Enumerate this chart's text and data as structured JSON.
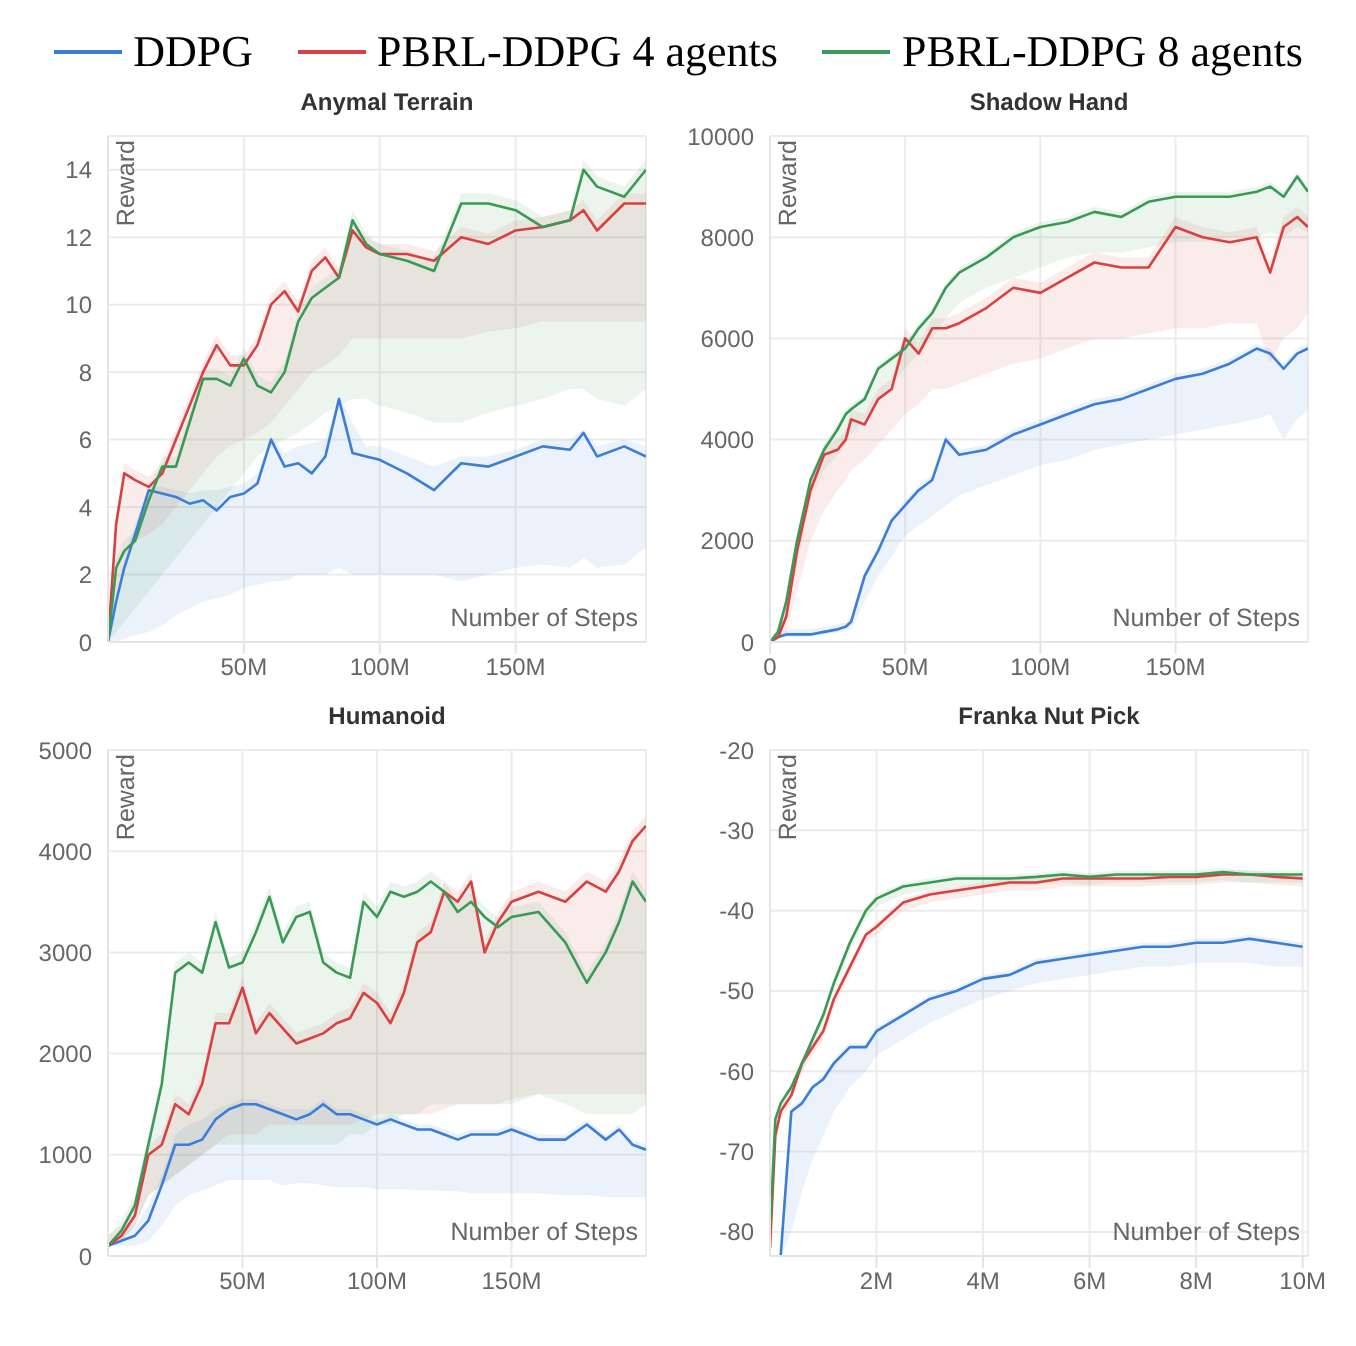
{
  "chart_data": [
    {
      "type": "line",
      "title": "Anymal Terrain",
      "xlabel": "Number of Steps",
      "ylabel": "Reward",
      "legend": "top",
      "grid": true,
      "xlim": [
        0,
        198
      ],
      "ylim": [
        0,
        15
      ],
      "xticks": [
        {
          "value": 50,
          "label": "50M"
        },
        {
          "value": 100,
          "label": "100M"
        },
        {
          "value": 150,
          "label": "150M"
        }
      ],
      "yticks": [
        0,
        2,
        4,
        6,
        8,
        10,
        12,
        14
      ],
      "x": [
        0,
        3,
        6,
        10,
        15,
        20,
        25,
        30,
        35,
        40,
        45,
        50,
        55,
        60,
        65,
        70,
        75,
        80,
        85,
        90,
        95,
        100,
        110,
        120,
        130,
        140,
        150,
        160,
        170,
        175,
        180,
        190,
        198
      ],
      "series": [
        {
          "name": "DDPG",
          "color": "#3b7dd8",
          "values": [
            0,
            1.2,
            2.2,
            3.2,
            4.5,
            4.4,
            4.3,
            4.1,
            4.2,
            3.9,
            4.3,
            4.4,
            4.7,
            6.0,
            5.2,
            5.3,
            5.0,
            5.5,
            7.2,
            5.6,
            5.5,
            5.4,
            5.0,
            4.5,
            5.3,
            5.2,
            5.5,
            5.8,
            5.7,
            6.2,
            5.5,
            5.8,
            5.5
          ],
          "lower": [
            0,
            0,
            0.1,
            0.2,
            0.3,
            0.5,
            0.8,
            1.0,
            1.2,
            1.3,
            1.4,
            1.6,
            1.7,
            1.8,
            1.8,
            2.0,
            2.0,
            2.0,
            2.2,
            2.0,
            2.0,
            2.0,
            2.0,
            2.0,
            1.8,
            2.0,
            2.2,
            2.3,
            2.2,
            2.5,
            2.2,
            2.3,
            2.8
          ],
          "upper": [
            0,
            1.5,
            2.5,
            3.5,
            4.6,
            4.6,
            4.5,
            4.4,
            4.5,
            4.5,
            4.6,
            4.7,
            5.0,
            6.1,
            5.6,
            5.8,
            5.9,
            6.0,
            7.3,
            6.5,
            5.8,
            5.8,
            5.5,
            5.2,
            5.5,
            5.5,
            5.7,
            6.0,
            6.0,
            6.3,
            5.8,
            6.0,
            5.8
          ]
        },
        {
          "name": "PBRL-DDPG 4 agents",
          "color": "#d94040",
          "values": [
            0,
            3.5,
            5.0,
            4.8,
            4.6,
            5.0,
            6.0,
            7.0,
            8.0,
            8.8,
            8.2,
            8.2,
            8.8,
            10.0,
            10.4,
            9.8,
            11.0,
            11.4,
            10.8,
            12.2,
            11.7,
            11.5,
            11.5,
            11.3,
            12.0,
            11.8,
            12.2,
            12.3,
            12.5,
            12.8,
            12.2,
            13.0,
            13.0
          ],
          "lower": [
            0,
            1.5,
            2.5,
            3.0,
            3.2,
            3.5,
            4.0,
            4.5,
            5.0,
            5.5,
            5.8,
            6.0,
            6.2,
            6.5,
            7.0,
            7.5,
            8.0,
            8.2,
            8.5,
            9.0,
            9.0,
            9.0,
            9.0,
            9.0,
            9.0,
            9.2,
            9.3,
            9.5,
            9.5,
            9.5,
            9.5,
            9.5,
            9.5
          ],
          "upper": [
            0,
            3.8,
            5.3,
            5.1,
            4.9,
            5.3,
            6.3,
            7.3,
            8.3,
            9.1,
            8.5,
            8.5,
            9.1,
            10.3,
            10.7,
            10.1,
            11.3,
            11.7,
            11.1,
            12.5,
            12.0,
            11.8,
            11.8,
            11.6,
            12.3,
            12.1,
            12.5,
            12.6,
            12.8,
            13.1,
            12.5,
            13.3,
            13.3
          ]
        },
        {
          "name": "PBRL-DDPG 8 agents",
          "color": "#3a9a55",
          "values": [
            0,
            2.2,
            2.7,
            3.0,
            4.2,
            5.2,
            5.2,
            6.5,
            7.8,
            7.8,
            7.6,
            8.4,
            7.6,
            7.4,
            8.0,
            9.5,
            10.2,
            10.5,
            10.8,
            12.5,
            11.8,
            11.5,
            11.3,
            11.0,
            13.0,
            13.0,
            12.8,
            12.3,
            12.5,
            14.0,
            13.5,
            13.2,
            14.0
          ],
          "lower": [
            0,
            0.3,
            0.6,
            1.0,
            1.5,
            2.0,
            2.5,
            3.0,
            3.5,
            4.0,
            4.5,
            5.0,
            5.5,
            5.8,
            6.0,
            6.2,
            6.5,
            6.8,
            7.0,
            7.2,
            7.2,
            7.0,
            6.8,
            6.5,
            6.5,
            6.8,
            7.0,
            7.2,
            7.5,
            7.5,
            7.2,
            7.0,
            7.5
          ],
          "upper": [
            0,
            2.5,
            3.0,
            3.3,
            4.5,
            5.5,
            5.5,
            6.8,
            8.1,
            8.1,
            7.9,
            8.7,
            7.9,
            7.7,
            8.3,
            9.8,
            10.5,
            10.8,
            11.1,
            12.8,
            12.1,
            11.8,
            11.6,
            11.3,
            13.3,
            13.3,
            13.1,
            12.6,
            12.8,
            14.3,
            13.8,
            13.5,
            14.3
          ]
        }
      ]
    },
    {
      "type": "line",
      "title": "Shadow Hand",
      "xlabel": "Number of Steps",
      "ylabel": "Reward",
      "grid": true,
      "xlim": [
        0,
        199
      ],
      "ylim": [
        0,
        10000
      ],
      "xticks": [
        0,
        {
          "value": 50,
          "label": "50M"
        },
        {
          "value": 100,
          "label": "100M"
        },
        {
          "value": 150,
          "label": "150M"
        }
      ],
      "yticks": [
        0,
        2000,
        4000,
        6000,
        8000,
        10000
      ],
      "x": [
        0,
        3,
        6,
        10,
        15,
        20,
        25,
        28,
        30,
        35,
        40,
        45,
        50,
        55,
        60,
        65,
        70,
        80,
        90,
        100,
        110,
        120,
        130,
        140,
        150,
        160,
        170,
        180,
        185,
        190,
        195,
        199
      ],
      "series": [
        {
          "color": "#3b7dd8",
          "values": [
            0,
            100,
            150,
            150,
            150,
            200,
            250,
            300,
            400,
            1300,
            1800,
            2400,
            2700,
            3000,
            3200,
            4000,
            3700,
            3800,
            4100,
            4300,
            4500,
            4700,
            4800,
            5000,
            5200,
            5300,
            5500,
            5800,
            5700,
            5400,
            5700,
            5800
          ],
          "lower": [
            0,
            50,
            100,
            100,
            100,
            150,
            200,
            200,
            250,
            800,
            1300,
            1700,
            2100,
            2300,
            2500,
            2700,
            2900,
            3100,
            3300,
            3500,
            3600,
            3800,
            3900,
            4000,
            4100,
            4200,
            4300,
            4400,
            4500,
            4000,
            4400,
            4600
          ],
          "upper": [
            0,
            200,
            250,
            250,
            250,
            300,
            350,
            400,
            500,
            1400,
            1900,
            2500,
            2800,
            3100,
            3300,
            4100,
            3800,
            3900,
            4200,
            4400,
            4600,
            4800,
            4900,
            5100,
            5300,
            5400,
            5600,
            5900,
            5800,
            5500,
            5800,
            5900
          ]
        },
        {
          "color": "#d94040",
          "values": [
            0,
            100,
            500,
            1800,
            3000,
            3700,
            3800,
            4000,
            4400,
            4300,
            4800,
            5000,
            6000,
            5700,
            6200,
            6200,
            6300,
            6600,
            7000,
            6900,
            7200,
            7500,
            7400,
            7400,
            8200,
            8000,
            7900,
            8000,
            7300,
            8200,
            8400,
            8200
          ],
          "lower": [
            0,
            50,
            200,
            1000,
            2000,
            2600,
            3000,
            3200,
            3400,
            3600,
            3900,
            4200,
            4500,
            4700,
            5000,
            5000,
            5100,
            5300,
            5500,
            5600,
            5800,
            6000,
            6000,
            6100,
            6200,
            6200,
            6300,
            6300,
            5500,
            6000,
            6200,
            6500
          ],
          "upper": [
            0,
            300,
            700,
            2000,
            3200,
            3900,
            4000,
            4200,
            4600,
            4500,
            5000,
            5200,
            6200,
            5900,
            6400,
            6400,
            6500,
            6800,
            7200,
            7100,
            7400,
            7700,
            7600,
            7600,
            8400,
            8200,
            8100,
            8200,
            7500,
            8400,
            8600,
            8400
          ]
        },
        {
          "color": "#3a9a55",
          "values": [
            0,
            200,
            800,
            2000,
            3200,
            3800,
            4200,
            4500,
            4600,
            4800,
            5400,
            5600,
            5800,
            6200,
            6500,
            7000,
            7300,
            7600,
            8000,
            8200,
            8300,
            8500,
            8400,
            8700,
            8800,
            8800,
            8800,
            8900,
            9000,
            8800,
            9200,
            8900
          ],
          "lower": [
            0,
            100,
            500,
            1500,
            2800,
            3400,
            3700,
            3900,
            4100,
            4400,
            4800,
            5100,
            5400,
            5700,
            6000,
            6400,
            6700,
            7000,
            7200,
            7400,
            7600,
            7700,
            7700,
            7800,
            7900,
            7900,
            8000,
            8000,
            8100,
            8000,
            8200,
            8100
          ],
          "upper": [
            0,
            300,
            900,
            2100,
            3300,
            3900,
            4300,
            4600,
            4700,
            4900,
            5500,
            5700,
            5900,
            6300,
            6600,
            7100,
            7400,
            7700,
            8100,
            8300,
            8400,
            8600,
            8500,
            8800,
            8900,
            8900,
            8900,
            9000,
            9100,
            8900,
            9300,
            9000
          ]
        }
      ]
    },
    {
      "type": "line",
      "title": "Humanoid",
      "xlabel": "Number of Steps",
      "ylabel": "Reward",
      "grid": true,
      "xlim": [
        0,
        200
      ],
      "ylim": [
        0,
        5000
      ],
      "xticks": [
        {
          "value": 50,
          "label": "50M"
        },
        {
          "value": 100,
          "label": "100M"
        },
        {
          "value": 150,
          "label": "150M"
        }
      ],
      "yticks": [
        0,
        1000,
        2000,
        3000,
        4000,
        5000
      ],
      "x": [
        0,
        5,
        10,
        15,
        20,
        25,
        30,
        35,
        40,
        45,
        50,
        55,
        60,
        65,
        70,
        75,
        80,
        85,
        90,
        95,
        100,
        105,
        110,
        115,
        120,
        125,
        130,
        135,
        140,
        145,
        150,
        160,
        170,
        178,
        185,
        190,
        195,
        200
      ],
      "series": [
        {
          "color": "#3b7dd8",
          "values": [
            100,
            150,
            200,
            350,
            700,
            1100,
            1100,
            1150,
            1350,
            1450,
            1500,
            1500,
            1450,
            1400,
            1350,
            1400,
            1500,
            1400,
            1400,
            1350,
            1300,
            1350,
            1300,
            1250,
            1250,
            1200,
            1150,
            1200,
            1200,
            1200,
            1250,
            1150,
            1150,
            1300,
            1150,
            1250,
            1100,
            1050
          ],
          "lower": [
            100,
            100,
            100,
            150,
            300,
            500,
            600,
            650,
            700,
            750,
            750,
            750,
            750,
            700,
            720,
            720,
            700,
            680,
            680,
            680,
            660,
            660,
            660,
            650,
            650,
            640,
            640,
            620,
            620,
            620,
            620,
            620,
            600,
            600,
            580,
            580,
            580,
            580
          ],
          "upper": [
            100,
            200,
            300,
            500,
            800,
            1200,
            1300,
            1350,
            1450,
            1500,
            1550,
            1550,
            1500,
            1450,
            1450,
            1450,
            1550,
            1450,
            1450,
            1400,
            1350,
            1400,
            1350,
            1300,
            1300,
            1250,
            1200,
            1250,
            1250,
            1250,
            1300,
            1200,
            1200,
            1350,
            1200,
            1300,
            1150,
            1100
          ]
        },
        {
          "color": "#d94040",
          "values": [
            100,
            200,
            400,
            1000,
            1100,
            1500,
            1400,
            1700,
            2300,
            2300,
            2650,
            2200,
            2400,
            2250,
            2100,
            2150,
            2200,
            2300,
            2350,
            2600,
            2500,
            2300,
            2600,
            3100,
            3200,
            3600,
            3500,
            3700,
            3000,
            3300,
            3500,
            3600,
            3500,
            3700,
            3600,
            3800,
            4100,
            4250
          ],
          "lower": [
            100,
            150,
            300,
            600,
            700,
            800,
            900,
            1000,
            1100,
            1200,
            1200,
            1200,
            1300,
            1300,
            1300,
            1300,
            1300,
            1300,
            1300,
            1350,
            1400,
            1400,
            1400,
            1400,
            1400,
            1450,
            1500,
            1500,
            1500,
            1500,
            1550,
            1600,
            1600,
            1600,
            1600,
            1600,
            1600,
            1600
          ],
          "upper": [
            200,
            300,
            500,
            1100,
            1200,
            1600,
            1500,
            1800,
            2400,
            2400,
            2750,
            2300,
            2500,
            2350,
            2200,
            2250,
            2300,
            2400,
            2450,
            2700,
            2600,
            2400,
            2700,
            3200,
            3300,
            3700,
            3600,
            3800,
            3100,
            3400,
            3600,
            3700,
            3600,
            3800,
            3700,
            3900,
            4200,
            4350
          ]
        },
        {
          "color": "#3a9a55",
          "values": [
            100,
            250,
            500,
            1100,
            1700,
            2800,
            2900,
            2800,
            3300,
            2850,
            2900,
            3200,
            3550,
            3100,
            3350,
            3400,
            2900,
            2800,
            2750,
            3500,
            3350,
            3600,
            3550,
            3600,
            3700,
            3600,
            3400,
            3500,
            3350,
            3250,
            3350,
            3400,
            3100,
            2700,
            3000,
            3300,
            3700,
            3500
          ],
          "lower": [
            100,
            150,
            300,
            600,
            700,
            800,
            900,
            1000,
            1100,
            1100,
            1100,
            1100,
            1100,
            1100,
            1100,
            1100,
            1100,
            1100,
            1200,
            1200,
            1300,
            1300,
            1400,
            1400,
            1500,
            1500,
            1500,
            1500,
            1500,
            1500,
            1500,
            1600,
            1500,
            1400,
            1400,
            1400,
            1400,
            1500
          ],
          "upper": [
            200,
            350,
            600,
            1200,
            1800,
            2900,
            3000,
            2900,
            3400,
            2950,
            3000,
            3300,
            3650,
            3200,
            3450,
            3500,
            3000,
            2900,
            2850,
            3600,
            3450,
            3700,
            3650,
            3700,
            3800,
            3700,
            3500,
            3600,
            3450,
            3350,
            3450,
            3500,
            3200,
            2800,
            3100,
            3400,
            3800,
            3600
          ]
        }
      ]
    },
    {
      "type": "line",
      "title": "Franka Nut Pick",
      "xlabel": "Number of Steps",
      "ylabel": "Reward",
      "grid": true,
      "xlim": [
        0,
        10.1
      ],
      "ylim": [
        -83,
        -20
      ],
      "xticks": [
        {
          "value": 2,
          "label": "2M"
        },
        {
          "value": 4,
          "label": "4M"
        },
        {
          "value": 6,
          "label": "6M"
        },
        {
          "value": 8,
          "label": "8M"
        },
        {
          "value": 10,
          "label": "10M"
        }
      ],
      "yticks": [
        -80,
        -70,
        -60,
        -50,
        -40,
        -30,
        -20
      ],
      "x": [
        0,
        0.1,
        0.2,
        0.4,
        0.6,
        0.8,
        1.0,
        1.2,
        1.5,
        1.8,
        2.0,
        2.5,
        3.0,
        3.5,
        4.0,
        4.5,
        5.0,
        5.5,
        6.0,
        6.5,
        7.0,
        7.5,
        8.0,
        8.5,
        9.0,
        9.5,
        10.0
      ],
      "series": [
        {
          "color": "#3b7dd8",
          "values": [
            null,
            null,
            -83,
            -65,
            -64,
            -62,
            -61,
            -59,
            -57,
            -57,
            -55,
            -53,
            -51,
            -50,
            -48.5,
            -48,
            -46.5,
            -46,
            -45.5,
            -45,
            -44.5,
            -44.5,
            -44,
            -44,
            -43.5,
            -44,
            -44.5
          ],
          "lower": [
            null,
            null,
            -83,
            -80,
            -75,
            -71,
            -68,
            -65,
            -62,
            -60,
            -58,
            -56,
            -54,
            -52.5,
            -51,
            -50,
            -49,
            -48.5,
            -48,
            -47.5,
            -47,
            -47,
            -46.5,
            -46.5,
            -46.5,
            -47,
            -47
          ],
          "upper": [
            null,
            null,
            -82.5,
            -64.5,
            -63.5,
            -61.5,
            -60.5,
            -58.5,
            -56.5,
            -56.5,
            -54.5,
            -52.5,
            -50.5,
            -49.5,
            -48,
            -47.5,
            -46,
            -45.5,
            -45,
            -44.5,
            -44,
            -44,
            -43.5,
            -43.5,
            -43,
            -43.5,
            -44
          ]
        },
        {
          "color": "#d94040",
          "values": [
            -82,
            -68,
            -65,
            -63,
            -59,
            -57,
            -55,
            -51,
            -47,
            -43,
            -42,
            -39,
            -38,
            -37.5,
            -37,
            -36.5,
            -36.5,
            -36,
            -36,
            -36,
            -36,
            -35.8,
            -35.8,
            -35.5,
            -35.5,
            -35.8,
            -36
          ],
          "lower": [
            -83,
            -69,
            -66,
            -64,
            -60,
            -58,
            -56,
            -52,
            -48,
            -44,
            -43,
            -40,
            -39,
            -38.5,
            -38,
            -37.5,
            -37.5,
            -37,
            -37,
            -37,
            -37,
            -36.8,
            -36.8,
            -36.5,
            -36.5,
            -36.8,
            -37
          ],
          "upper": [
            -81.5,
            -67.5,
            -64.5,
            -62.5,
            -58.5,
            -56.5,
            -54.5,
            -50.5,
            -46.5,
            -42.5,
            -41.5,
            -38.5,
            -37.5,
            -37,
            -36.5,
            -36,
            -36,
            -35.5,
            -35.5,
            -35.5,
            -35.5,
            -35.3,
            -35.3,
            -35,
            -35,
            -35.3,
            -35.5
          ]
        },
        {
          "color": "#3a9a55",
          "values": [
            -80,
            -66,
            -64,
            -62,
            -59,
            -56,
            -53,
            -49,
            -44,
            -40,
            -38.5,
            -37,
            -36.5,
            -36,
            -36,
            -36,
            -35.8,
            -35.5,
            -35.8,
            -35.5,
            -35.5,
            -35.5,
            -35.5,
            -35.2,
            -35.5,
            -35.5,
            -35.5
          ],
          "lower": [
            -81,
            -67,
            -65,
            -63,
            -60,
            -57,
            -54,
            -50,
            -45,
            -41,
            -39.5,
            -38,
            -37.5,
            -37,
            -37,
            -37,
            -36.8,
            -36.5,
            -36.8,
            -36.5,
            -36.5,
            -36.5,
            -36.5,
            -36.2,
            -36.5,
            -36.5,
            -36.5
          ],
          "upper": [
            -79.5,
            -65.5,
            -63.5,
            -61.5,
            -58.5,
            -55.5,
            -52.5,
            -48.5,
            -43.5,
            -39.5,
            -38,
            -36.5,
            -36,
            -35.5,
            -35.5,
            -35.5,
            -35.3,
            -35,
            -35.3,
            -35,
            -35,
            -35,
            -35,
            -34.7,
            -35,
            -35,
            -35
          ]
        }
      ]
    }
  ]
}
